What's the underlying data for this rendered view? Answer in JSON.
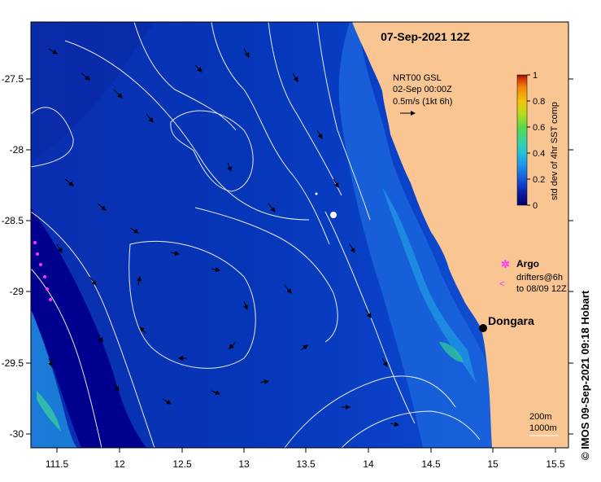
{
  "title": "07-Sep-2021 12Z",
  "current_note": {
    "line1": "NRT00 GSL",
    "line2": "02-Sep 00:00Z",
    "line3": "0.5m/s (1kt 6h)"
  },
  "colorbar": {
    "label": "std dev of 4hr SST comp",
    "ticks": [
      "0",
      "0.2",
      "0.4",
      "0.6",
      "0.8",
      "1"
    ],
    "colors": [
      "#00006a",
      "#0a1fa8",
      "#1556d8",
      "#1e90e8",
      "#26c0d8",
      "#3ad49a",
      "#58d84a",
      "#b8dc1e",
      "#f2c40a",
      "#f08a0a",
      "#d6340a",
      "#8a0f0f"
    ]
  },
  "legend": {
    "argo_label": "Argo",
    "drifters_line1": "drifters@6h",
    "drifters_line2": "to 08/09 12Z"
  },
  "place": {
    "name": "Dongara"
  },
  "depth_legend": {
    "contour1": "200m",
    "contour2": "1000m"
  },
  "x_ticks": [
    "111.5",
    "12",
    "12.5",
    "13",
    "13.5",
    "14",
    "14.5",
    "15",
    "15.5"
  ],
  "y_ticks": [
    "-27.5",
    "-28",
    "-28.5",
    "-29",
    "-29.5",
    "-30"
  ],
  "credit": "© IMOS 09-Sep-2021 09:18 Hobart",
  "colors": {
    "land": "#f8c593",
    "ocean_deep": "#00008f",
    "ocean_mid": "#0a3fc4",
    "marker": "#000000",
    "argo": "#ff33ff"
  }
}
